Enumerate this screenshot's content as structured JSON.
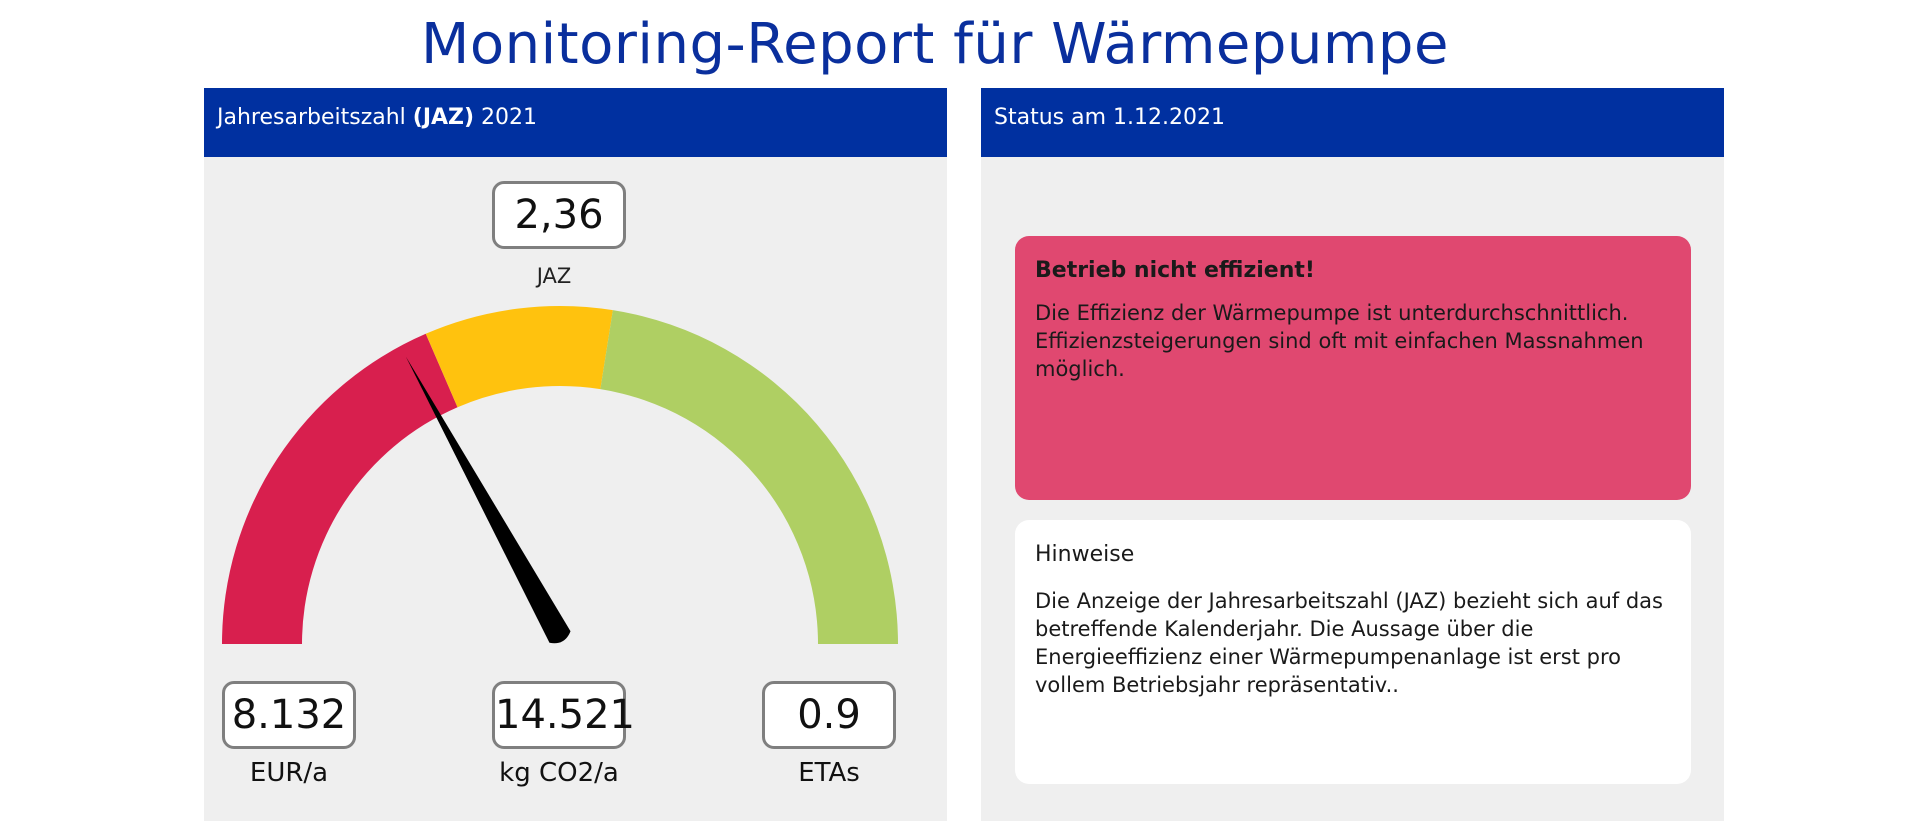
{
  "page": {
    "title": "Monitoring-Report für Wärmepumpe"
  },
  "left_panel": {
    "header_prefix": "Jahresarbeitszahl ",
    "header_bold": "(JAZ)",
    "header_suffix": " 2021",
    "gauge": {
      "value_text": "2,36",
      "value": 2.36,
      "label": "JAZ",
      "segment_fractions": [
        0.37,
        0.18,
        0.45
      ],
      "pointer_fraction": 0.34,
      "colors": {
        "red": "#d81f4e",
        "yellow": "#ffc20e",
        "green": "#afcf63",
        "needle": "#000000"
      }
    },
    "metrics": [
      {
        "value": "8.132",
        "unit": "EUR/a"
      },
      {
        "value": "14.521",
        "unit": "kg CO2/a"
      },
      {
        "value": "0.9",
        "unit": "ETAs"
      }
    ]
  },
  "right_panel": {
    "header": "Status am 1.12.2021",
    "alert": {
      "title": "Betrieb nicht effizient!",
      "body": "Die Effizienz der Wärmepumpe ist unterdurchschnittlich. Effizienzsteigerungen sind oft mit einfachen Massnahmen möglich.",
      "color": "#e04870"
    },
    "hint": {
      "title": "Hinweise",
      "body": "Die Anzeige der Jahresarbeitszahl (JAZ) bezieht sich auf das betreffende Kalenderjahr. Die Aussage über die Energieeffizienz einer Wärmepumpenanlage ist erst pro vollem Betriebsjahr repräsentativ.."
    }
  },
  "colors": {
    "accent_blue": "#0030a0",
    "title_blue": "#0a2f9d",
    "panel_bg": "#efefef"
  }
}
